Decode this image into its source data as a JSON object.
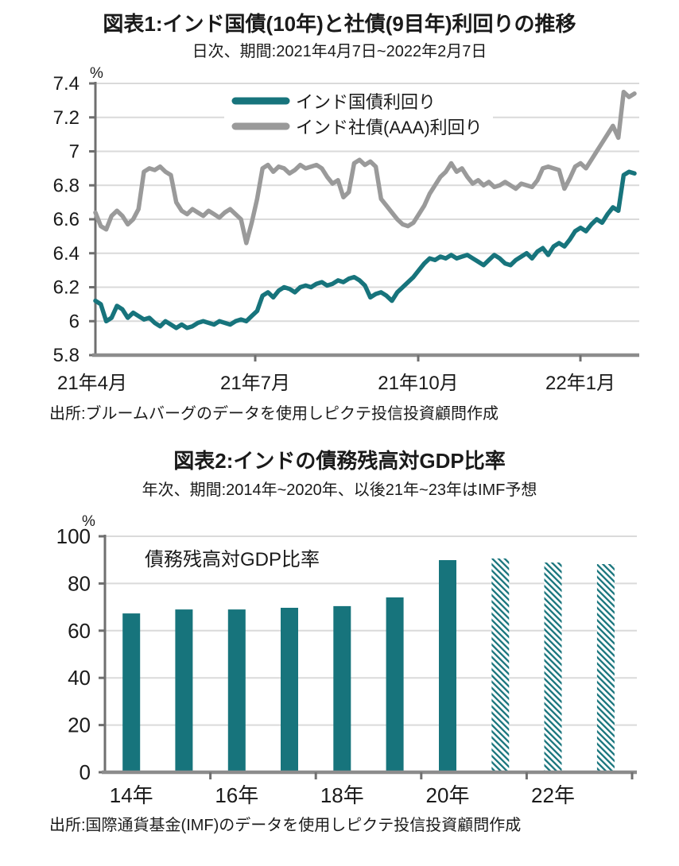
{
  "chart_data": [
    {
      "type": "line",
      "title": "図表1:インド国債(10年)と社債(9目年)利回りの推移",
      "subtitle": "日次、期間:2021年4月7日~2022年2月7日",
      "unit": "%",
      "source": "出所:ブルームバーグのデータを使用しピクテ投信投資顧問作成",
      "x_tick_labels": [
        "21年4月",
        "21年7月",
        "21年10月",
        "22年1月"
      ],
      "y_tick_labels": [
        "5.8",
        "6",
        "6.2",
        "6.4",
        "6.6",
        "6.8",
        "7",
        "7.2",
        "7.4"
      ],
      "y_ticks": [
        5.8,
        6.0,
        6.2,
        6.4,
        6.6,
        6.8,
        7.0,
        7.2,
        7.4
      ],
      "ylim": [
        5.8,
        7.4
      ],
      "grid": true,
      "legend_position": "top-center-inside",
      "axis_color": "#6f6f6f",
      "grid_color": "#dadada",
      "series": [
        {
          "name": "インド国債利回り",
          "color": "#17747c",
          "values": [
            6.12,
            6.1,
            6.0,
            6.02,
            6.09,
            6.07,
            6.02,
            6.05,
            6.03,
            6.01,
            6.02,
            5.99,
            5.97,
            6.0,
            5.98,
            5.96,
            5.98,
            5.96,
            5.97,
            5.99,
            6.0,
            5.99,
            5.98,
            6.0,
            5.99,
            5.98,
            6.0,
            6.01,
            6.0,
            6.03,
            6.06,
            6.15,
            6.17,
            6.14,
            6.18,
            6.2,
            6.19,
            6.17,
            6.2,
            6.21,
            6.2,
            6.22,
            6.23,
            6.21,
            6.22,
            6.24,
            6.23,
            6.25,
            6.26,
            6.24,
            6.21,
            6.14,
            6.16,
            6.17,
            6.15,
            6.12,
            6.17,
            6.2,
            6.23,
            6.26,
            6.3,
            6.34,
            6.37,
            6.36,
            6.38,
            6.37,
            6.39,
            6.37,
            6.38,
            6.39,
            6.37,
            6.35,
            6.33,
            6.36,
            6.39,
            6.37,
            6.34,
            6.33,
            6.36,
            6.38,
            6.4,
            6.37,
            6.41,
            6.43,
            6.39,
            6.44,
            6.46,
            6.44,
            6.48,
            6.53,
            6.55,
            6.53,
            6.57,
            6.6,
            6.58,
            6.63,
            6.67,
            6.65,
            6.86,
            6.88,
            6.87
          ]
        },
        {
          "name": "インド社債(AAA)利回り",
          "color": "#9a9a9a",
          "values": [
            6.64,
            6.56,
            6.54,
            6.62,
            6.65,
            6.62,
            6.57,
            6.6,
            6.66,
            6.88,
            6.9,
            6.89,
            6.91,
            6.88,
            6.86,
            6.7,
            6.65,
            6.63,
            6.66,
            6.64,
            6.62,
            6.65,
            6.63,
            6.61,
            6.64,
            6.66,
            6.63,
            6.6,
            6.46,
            6.58,
            6.72,
            6.9,
            6.92,
            6.88,
            6.91,
            6.9,
            6.87,
            6.89,
            6.92,
            6.9,
            6.91,
            6.92,
            6.9,
            6.85,
            6.81,
            6.83,
            6.73,
            6.76,
            6.93,
            6.95,
            6.92,
            6.94,
            6.91,
            6.72,
            6.68,
            6.64,
            6.6,
            6.57,
            6.56,
            6.58,
            6.63,
            6.68,
            6.75,
            6.8,
            6.85,
            6.88,
            6.93,
            6.88,
            6.9,
            6.85,
            6.81,
            6.83,
            6.8,
            6.82,
            6.79,
            6.8,
            6.82,
            6.8,
            6.78,
            6.81,
            6.8,
            6.79,
            6.83,
            6.9,
            6.91,
            6.9,
            6.89,
            6.78,
            6.84,
            6.91,
            6.93,
            6.9,
            6.95,
            7.0,
            7.05,
            7.1,
            7.15,
            7.08,
            7.35,
            7.32,
            7.34
          ]
        }
      ]
    },
    {
      "type": "bar",
      "title": "図表2:インドの債務残高対GDP比率",
      "subtitle": "年次、期間:2014年~2020年、以後21年~23年はIMF予想",
      "unit": "%",
      "source": "出所:国際通貨基金(IMF)のデータを使用しピクテ投信投資顧問作成",
      "bar_label": "債務残高対GDP比率",
      "categories": [
        "14年",
        "15年",
        "16年",
        "17年",
        "18年",
        "19年",
        "20年",
        "21年",
        "22年",
        "23年"
      ],
      "values": [
        67.3,
        69.0,
        69.0,
        69.7,
        70.4,
        74.1,
        89.9,
        90.6,
        88.9,
        88.2
      ],
      "solid_count": 7,
      "forecast_categories": [
        "21年",
        "22年",
        "23年"
      ],
      "x_tick_labels": [
        "14年",
        "16年",
        "18年",
        "20年",
        "22年"
      ],
      "y_ticks": [
        0,
        20,
        40,
        60,
        80,
        100
      ],
      "ylim": [
        0,
        100
      ],
      "grid": true,
      "bar_color": "#17747c",
      "axis_color": "#6f6f6f",
      "grid_color": "#dadada"
    }
  ]
}
